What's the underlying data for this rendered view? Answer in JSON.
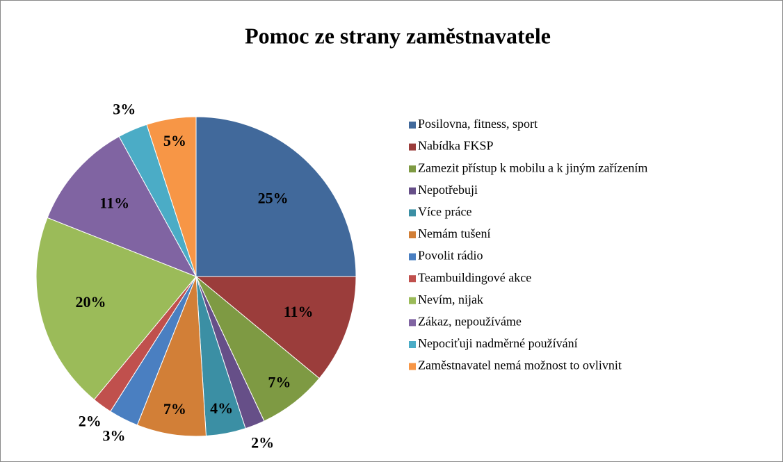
{
  "chart_data": {
    "type": "pie",
    "title": "Pomoc ze strany zaměstnavatele",
    "categories": [
      "Posilovna, fitness, sport",
      "Nabídka FKSP",
      "Zamezit přístup k mobilu a k jiným zařízením",
      "Nepotřebuji",
      "Více práce",
      "Nemám tušení",
      "Povolit rádio",
      "Teambuildingové akce",
      "Nevím, nijak",
      "Zákaz, nepoužíváme",
      "Nepociťuji nadměrné používání",
      "Zaměstnavatel nemá možnost to ovlivnit"
    ],
    "values": [
      25,
      11,
      7,
      2,
      4,
      7,
      3,
      2,
      20,
      11,
      3,
      5
    ],
    "value_labels": [
      "25%",
      "11%",
      "7%",
      "2%",
      "4%",
      "7%",
      "3%",
      "2%",
      "20%",
      "11%",
      "3%",
      "5%"
    ],
    "colors": [
      "#41699b",
      "#9b3d3b",
      "#7e9a43",
      "#664f88",
      "#3b8fa4",
      "#d27f37",
      "#4a7fc1",
      "#c0504d",
      "#9bbb59",
      "#8064a2",
      "#4bacc6",
      "#f79646"
    ],
    "legend": "right"
  }
}
